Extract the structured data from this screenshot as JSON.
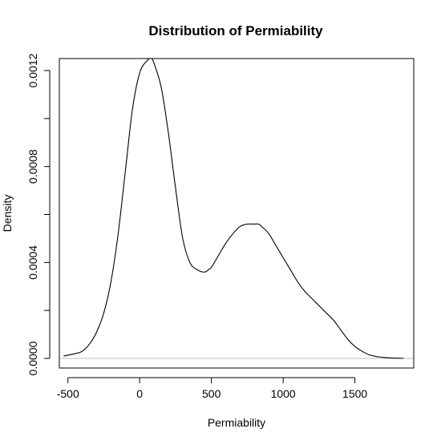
{
  "chart_data": {
    "type": "line",
    "title": "Distribution of Permiability",
    "xlabel": "Permiability",
    "ylabel": "Density",
    "xlim": [
      -560,
      1910
    ],
    "ylim": [
      -4e-05,
      0.00125
    ],
    "x_ticks": [
      -500,
      0,
      500,
      1000,
      1500
    ],
    "x_tick_labels": [
      "-500",
      "0",
      "500",
      "1000",
      "1500"
    ],
    "y_ticks": [
      0.0,
      0.0002,
      0.0004,
      0.0006,
      0.0008,
      0.001,
      0.0012
    ],
    "y_tick_labels": [
      "0.0000",
      "",
      "0.0004",
      "",
      "0.0008",
      "",
      "0.0012"
    ],
    "baseline": 0,
    "grid": false,
    "colors": {
      "line": "#000000",
      "baseline": "#bebebe",
      "frame": "#000000"
    },
    "series": [
      {
        "x": [
          -530,
          -450,
          -400,
          -350,
          -300,
          -250,
          -200,
          -150,
          -100,
          -50,
          0,
          50,
          80,
          100,
          150,
          200,
          250,
          300,
          350,
          400,
          450,
          480,
          500,
          550,
          600,
          650,
          700,
          750,
          800,
          830,
          850,
          900,
          950,
          1000,
          1050,
          1100,
          1150,
          1200,
          1250,
          1300,
          1350,
          1400,
          1450,
          1500,
          1550,
          1600,
          1650,
          1700,
          1750,
          1800,
          1840
        ],
        "y": [
          1e-05,
          2e-05,
          3e-05,
          6e-05,
          0.00011,
          0.00019,
          0.00032,
          0.00052,
          0.00078,
          0.00104,
          0.00119,
          0.00124,
          0.00125,
          0.00123,
          0.00113,
          0.00094,
          0.00071,
          0.0005,
          0.0004,
          0.00037,
          0.00036,
          0.00037,
          0.00038,
          0.00043,
          0.00048,
          0.00052,
          0.00055,
          0.00056,
          0.00056,
          0.00056,
          0.00055,
          0.00052,
          0.00047,
          0.00042,
          0.00037,
          0.00032,
          0.00028,
          0.00025,
          0.00022,
          0.00019,
          0.00016,
          0.00012,
          8e-05,
          5e-05,
          3e-05,
          1.5e-05,
          8e-06,
          4e-06,
          2e-06,
          1e-06,
          5e-07
        ]
      }
    ]
  }
}
